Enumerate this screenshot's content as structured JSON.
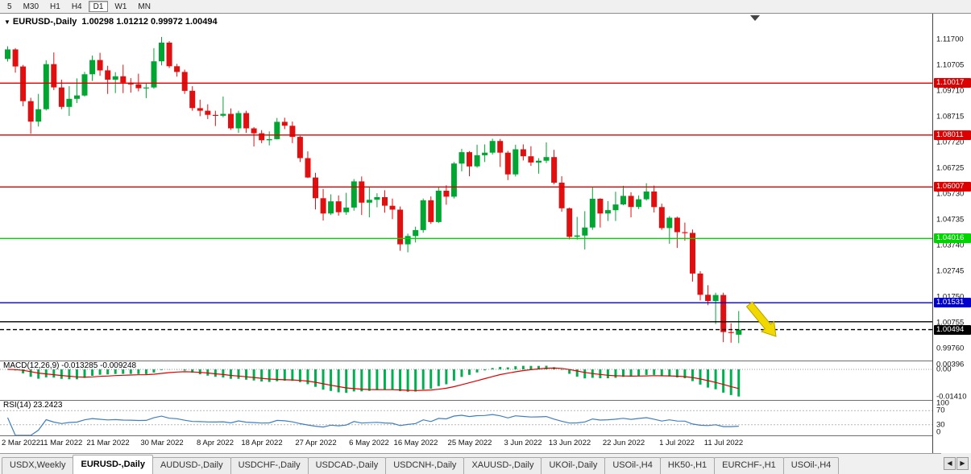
{
  "toolbar": {
    "timeframes": [
      "5",
      "M30",
      "H1",
      "H4",
      "D1",
      "W1",
      "MN"
    ],
    "active": "D1"
  },
  "chart": {
    "symbol": "EURUSD-,Daily",
    "ohlc_label": "1.00298 1.01212 0.99972 1.00494"
  },
  "chart_data": {
    "type": "candlestick",
    "title": "EURUSD-,Daily",
    "open": 1.00298,
    "high": 1.01212,
    "low": 0.99972,
    "close": 1.00494,
    "colors": {
      "up": "#00a532",
      "down": "#e01010",
      "macd_hist": "#00b050",
      "macd_signal": "#e00000",
      "rsi_line": "#3f7fbf",
      "level_red": "#dd0000",
      "level_green": "#00d400",
      "level_blue": "#0000cc",
      "level_black": "#000000"
    },
    "scale": {
      "price_max": 1.127,
      "price_min": 0.993
    },
    "y_axis_labels": [
      "1.11700",
      "1.10705",
      "1.09710",
      "1.08715",
      "1.07720",
      "1.06725",
      "1.05730",
      "1.04735",
      "1.03740",
      "1.02745",
      "1.01750",
      "1.00755",
      "0.99760"
    ],
    "x_ticks": [
      {
        "i": 0,
        "label": "2 Mar 2022"
      },
      {
        "i": 7,
        "label": "11 Mar 2022"
      },
      {
        "i": 13,
        "label": "21 Mar 2022"
      },
      {
        "i": 20,
        "label": "30 Mar 2022"
      },
      {
        "i": 27,
        "label": "8 Apr 2022"
      },
      {
        "i": 33,
        "label": "18 Apr 2022"
      },
      {
        "i": 40,
        "label": "27 Apr 2022"
      },
      {
        "i": 47,
        "label": "6 May 2022"
      },
      {
        "i": 53,
        "label": "16 May 2022"
      },
      {
        "i": 60,
        "label": "25 May 2022"
      },
      {
        "i": 67,
        "label": "3 Jun 2022"
      },
      {
        "i": 73,
        "label": "13 Jun 2022"
      },
      {
        "i": 80,
        "label": "22 Jun 2022"
      },
      {
        "i": 87,
        "label": "1 Jul 2022"
      },
      {
        "i": 93,
        "label": "11 Jul 2022"
      }
    ],
    "levels": [
      {
        "price": 1.10017,
        "label": "1.10017",
        "color": "#dd0000",
        "dashed": false
      },
      {
        "price": 1.08011,
        "label": "1.08011",
        "color": "#dd0000",
        "dashed": false
      },
      {
        "price": 1.06007,
        "label": "1.06007",
        "color": "#dd0000",
        "dashed": false
      },
      {
        "price": 1.04016,
        "label": "1.04016",
        "color": "#00d400",
        "dashed": false
      },
      {
        "price": 1.01531,
        "label": "1.01531",
        "color": "#0000cc",
        "dashed": false
      },
      {
        "price": 1.008,
        "label": "",
        "color": "#000000",
        "dashed": false
      },
      {
        "price": 1.00494,
        "label": "1.00494",
        "color": "#000000",
        "dashed": true
      }
    ],
    "candles": [
      [
        1.1095,
        1.1144,
        1.1085,
        1.1132
      ],
      [
        1.1132,
        1.1137,
        1.1042,
        1.1066
      ],
      [
        1.1066,
        1.1072,
        1.0912,
        1.0932
      ],
      [
        1.0932,
        1.0945,
        1.0806,
        1.0853
      ],
      [
        1.0853,
        1.096,
        1.0834,
        1.0901
      ],
      [
        1.0901,
        1.109,
        1.0896,
        1.1075
      ],
      [
        1.1075,
        1.112,
        1.0975,
        1.0985
      ],
      [
        1.0985,
        1.1015,
        1.0901,
        1.091
      ],
      [
        1.091,
        1.099,
        1.0875,
        1.0941
      ],
      [
        1.0941,
        1.102,
        1.0925,
        1.0954
      ],
      [
        1.0954,
        1.1045,
        1.095,
        1.1036
      ],
      [
        1.1036,
        1.1108,
        1.101,
        1.1091
      ],
      [
        1.1091,
        1.1119,
        1.103,
        1.1051
      ],
      [
        1.1051,
        1.1069,
        1.096,
        1.1015
      ],
      [
        1.1015,
        1.1044,
        1.0963,
        1.1028
      ],
      [
        1.1028,
        1.1073,
        1.0963,
        1.1004
      ],
      [
        1.1004,
        1.1021,
        1.0965,
        1.0997
      ],
      [
        1.0997,
        1.1038,
        1.097,
        1.0982
      ],
      [
        1.0982,
        1.1,
        1.0944,
        1.0985
      ],
      [
        1.0985,
        1.1137,
        1.098,
        1.1086
      ],
      [
        1.1086,
        1.118,
        1.107,
        1.1158
      ],
      [
        1.1158,
        1.1164,
        1.106,
        1.1067
      ],
      [
        1.1067,
        1.1076,
        1.1027,
        1.1045
      ],
      [
        1.1045,
        1.1054,
        1.096,
        1.0972
      ],
      [
        1.0972,
        1.099,
        1.0895,
        1.0905
      ],
      [
        1.0905,
        1.0938,
        1.0874,
        1.0895
      ],
      [
        1.0895,
        1.092,
        1.0863,
        1.0879
      ],
      [
        1.0879,
        1.0895,
        1.0836,
        1.0876
      ],
      [
        1.0876,
        1.095,
        1.087,
        1.0883
      ],
      [
        1.0883,
        1.0904,
        1.0821,
        1.0827
      ],
      [
        1.0827,
        1.0895,
        1.0809,
        1.0886
      ],
      [
        1.0886,
        1.0895,
        1.081,
        1.0827
      ],
      [
        1.0827,
        1.0832,
        1.0757,
        1.0808
      ],
      [
        1.0808,
        1.082,
        1.077,
        1.0781
      ],
      [
        1.0781,
        1.0815,
        1.0761,
        1.0785
      ],
      [
        1.0785,
        1.0867,
        1.0784,
        1.0852
      ],
      [
        1.0852,
        1.0868,
        1.0824,
        1.0837
      ],
      [
        1.0837,
        1.0853,
        1.077,
        1.0794
      ],
      [
        1.0794,
        1.0798,
        1.0697,
        1.0712
      ],
      [
        1.0712,
        1.0738,
        1.0635,
        1.0637
      ],
      [
        1.0637,
        1.0655,
        1.0514,
        1.0557
      ],
      [
        1.0557,
        1.0593,
        1.0471,
        1.0498
      ],
      [
        1.0498,
        1.0572,
        1.0492,
        1.0545
      ],
      [
        1.0545,
        1.0568,
        1.049,
        1.0503
      ],
      [
        1.0503,
        1.0578,
        1.0493,
        1.0521
      ],
      [
        1.0521,
        1.0631,
        1.0509,
        1.0622
      ],
      [
        1.0622,
        1.0641,
        1.0492,
        1.054
      ],
      [
        1.054,
        1.0599,
        1.0483,
        1.0551
      ],
      [
        1.0551,
        1.0576,
        1.0522,
        1.0561
      ],
      [
        1.0561,
        1.0588,
        1.0501,
        1.0528
      ],
      [
        1.0528,
        1.0556,
        1.0476,
        1.0513
      ],
      [
        1.0513,
        1.0525,
        1.0354,
        1.0379
      ],
      [
        1.0379,
        1.042,
        1.0348,
        1.0411
      ],
      [
        1.0411,
        1.0447,
        1.0386,
        1.0434
      ],
      [
        1.0434,
        1.0556,
        1.0424,
        1.0549
      ],
      [
        1.0549,
        1.0564,
        1.0458,
        1.0465
      ],
      [
        1.0465,
        1.0599,
        1.0461,
        1.0586
      ],
      [
        1.0586,
        1.0607,
        1.0532,
        1.0563
      ],
      [
        1.0563,
        1.0697,
        1.0556,
        1.0691
      ],
      [
        1.0691,
        1.0748,
        1.0661,
        1.0735
      ],
      [
        1.0735,
        1.0739,
        1.0642,
        1.068
      ],
      [
        1.068,
        1.0764,
        1.0675,
        1.0723
      ],
      [
        1.0723,
        1.0765,
        1.0697,
        1.0733
      ],
      [
        1.0733,
        1.0787,
        1.0726,
        1.0778
      ],
      [
        1.0778,
        1.0786,
        1.0678,
        1.0733
      ],
      [
        1.0733,
        1.074,
        1.0627,
        1.0649
      ],
      [
        1.0649,
        1.0764,
        1.0641,
        1.0746
      ],
      [
        1.0746,
        1.0765,
        1.0703,
        1.0719
      ],
      [
        1.0719,
        1.0758,
        1.0682,
        1.0695
      ],
      [
        1.0695,
        1.0712,
        1.0652,
        1.0702
      ],
      [
        1.0702,
        1.0773,
        1.0693,
        1.0716
      ],
      [
        1.0716,
        1.0744,
        1.0611,
        1.0617
      ],
      [
        1.0617,
        1.0642,
        1.0505,
        1.0518
      ],
      [
        1.0518,
        1.0521,
        1.0398,
        1.0408
      ],
      [
        1.0408,
        1.0485,
        1.0397,
        1.0413
      ],
      [
        1.0413,
        1.0507,
        1.0359,
        1.0444
      ],
      [
        1.0444,
        1.0601,
        1.0435,
        1.0555
      ],
      [
        1.0555,
        1.0557,
        1.0444,
        1.0498
      ],
      [
        1.0498,
        1.0546,
        1.0469,
        1.0511
      ],
      [
        1.0511,
        1.0582,
        1.0469,
        1.0533
      ],
      [
        1.0533,
        1.0605,
        1.053,
        1.0566
      ],
      [
        1.0566,
        1.058,
        1.0483,
        1.0523
      ],
      [
        1.0523,
        1.0568,
        1.0515,
        1.0553
      ],
      [
        1.0553,
        1.0615,
        1.0548,
        1.0583
      ],
      [
        1.0583,
        1.0606,
        1.0502,
        1.0523
      ],
      [
        1.0523,
        1.0536,
        1.0435,
        1.0442
      ],
      [
        1.0442,
        1.0488,
        1.0381,
        1.0482
      ],
      [
        1.0482,
        1.0486,
        1.0365,
        1.0426
      ],
      [
        1.0426,
        1.0463,
        1.0393,
        1.0423
      ],
      [
        1.0423,
        1.0436,
        1.0235,
        1.0266
      ],
      [
        1.0266,
        1.0275,
        1.0162,
        1.0184
      ],
      [
        1.0184,
        1.0221,
        1.0144,
        1.016
      ],
      [
        1.016,
        1.0192,
        1.0071,
        1.0183
      ],
      [
        1.0183,
        1.0192,
        1.0001,
        1.004
      ],
      [
        1.004,
        1.0074,
        0.9999,
        1.0037
      ],
      [
        1.00298,
        1.01212,
        0.99972,
        1.00494
      ]
    ],
    "macd": {
      "name": "MACD(12,26,9)",
      "values_label": "-0.013285 -0.009248",
      "fast": 12,
      "slow": 26,
      "signal_period": 9,
      "axis_labels": [
        {
          "v": 0.00396,
          "label": "0.00396"
        },
        {
          "v": 0,
          "label": "0.00"
        },
        {
          "v": -0.0141,
          "label": "-0.01410"
        }
      ],
      "max": 0.0045,
      "min": -0.0155
    },
    "rsi": {
      "name": "RSI(14)",
      "value_label": "23.2423",
      "period": 14,
      "axis_labels": [
        {
          "v": 100,
          "label": "100"
        },
        {
          "v": 70,
          "label": "70"
        },
        {
          "v": 30,
          "label": "30"
        },
        {
          "v": 0,
          "label": "0"
        }
      ],
      "levels": [
        70,
        30
      ]
    },
    "annotations": [
      {
        "type": "arrow-down-right",
        "color": "#f0d800"
      }
    ]
  },
  "tabs": {
    "items": [
      "USDX,Weekly",
      "EURUSD-,Daily",
      "AUDUSD-,Daily",
      "USDCHF-,Daily",
      "USDCAD-,Daily",
      "USDCNH-,Daily",
      "XAUUSD-,Daily",
      "UKOil-,Daily",
      "USOil-,H4",
      "HK50-,H1",
      "EURCHF-,H1",
      "USOil-,H4"
    ],
    "active_index": 1,
    "nav_left": "◀",
    "nav_right": "▶"
  }
}
